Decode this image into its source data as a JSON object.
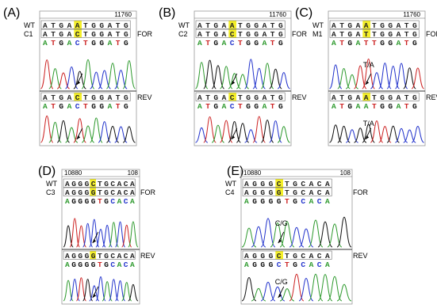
{
  "panels": [
    {
      "id": "A",
      "label": "(A)",
      "position": "11760",
      "rows": [
        {
          "name": "WT",
          "seq": "ATGAATGGATG",
          "tag": "",
          "style": "box"
        },
        {
          "name": "C1",
          "seq": "ATGACTGGATG",
          "tag": "FOR",
          "style": "box"
        },
        {
          "name": "",
          "seq": "ATGACTGGATG",
          "tag": "",
          "style": "color"
        }
      ],
      "rev_rows": [
        {
          "name": "",
          "seq": "ATGACTGGATG",
          "tag": "REV",
          "style": "box"
        },
        {
          "name": "",
          "seq": "ATGACTGGATG",
          "tag": "",
          "style": "color"
        }
      ],
      "highlight_index": 4,
      "annotation": ""
    },
    {
      "id": "B",
      "label": "(B)",
      "position": "11760",
      "rows": [
        {
          "name": "WT",
          "seq": "ATGAATGGATG",
          "tag": "",
          "style": "box"
        },
        {
          "name": "C2",
          "seq": "ATGACTGGATG",
          "tag": "FOR",
          "style": "box"
        },
        {
          "name": "",
          "seq": "ATGACTGGATG",
          "tag": "",
          "style": "color"
        }
      ],
      "rev_rows": [
        {
          "name": "",
          "seq": "ATGACTGGATG",
          "tag": "REV",
          "style": "box"
        },
        {
          "name": "",
          "seq": "ATGACTGGATG",
          "tag": "",
          "style": "color"
        }
      ],
      "highlight_index": 4,
      "annotation": ""
    },
    {
      "id": "C",
      "label": "(C)",
      "position": "11760",
      "rows": [
        {
          "name": "WT",
          "seq": "ATGAATGGATG",
          "tag": "",
          "style": "box"
        },
        {
          "name": "M1",
          "seq": "ATGATTGGATG",
          "tag": "FOR",
          "style": "box"
        },
        {
          "name": "",
          "seq": "ATGATTGGATG",
          "tag": "",
          "style": "color"
        }
      ],
      "rev_rows": [
        {
          "name": "",
          "seq": "ATGAATGGATG",
          "tag": "REV",
          "style": "box"
        },
        {
          "name": "",
          "seq": "ATGAATGGATG",
          "tag": "",
          "style": "color"
        }
      ],
      "highlight_index": 4,
      "annotation": "T/A"
    },
    {
      "id": "D",
      "label": "(D)",
      "position": "10880",
      "position_right": "108",
      "rows": [
        {
          "name": "WT",
          "seq": "AGGGCTGCACA",
          "tag": "",
          "style": "box"
        },
        {
          "name": "C3",
          "seq": "AGGGGTGCACA",
          "tag": "FOR",
          "style": "box"
        },
        {
          "name": "",
          "seq": "AGGGGTGCACA",
          "tag": "",
          "style": "color"
        }
      ],
      "rev_rows": [
        {
          "name": "",
          "seq": "AGGGGTGCACA",
          "tag": "REV",
          "style": "box"
        },
        {
          "name": "",
          "seq": "AGGGGTGCACA",
          "tag": "",
          "style": "color"
        }
      ],
      "highlight_index": 4,
      "annotation": ""
    },
    {
      "id": "E",
      "label": "(E)",
      "position": "10880",
      "position_right": "108",
      "rows": [
        {
          "name": "WT",
          "seq": "AGGGCTGCACA",
          "tag": "",
          "style": "box"
        },
        {
          "name": "C4",
          "seq": "AGGGGTGCACA",
          "tag": "FOR",
          "style": "box"
        },
        {
          "name": "",
          "seq": "AGGGGTGCACA",
          "tag": "",
          "style": "color"
        }
      ],
      "rev_rows": [
        {
          "name": "",
          "seq": "AGGGCTGCACA",
          "tag": "REV",
          "style": "box"
        },
        {
          "name": "",
          "seq": "AGGGCTGCACA",
          "tag": "",
          "style": "color"
        }
      ],
      "highlight_index": 4,
      "annotation": "C/G"
    }
  ],
  "colors": {
    "A": "#2e9a2e",
    "C": "#2233cc",
    "G": "#111111",
    "T": "#cc2222",
    "highlight": "#f4ef2a",
    "frame": "#999999"
  }
}
